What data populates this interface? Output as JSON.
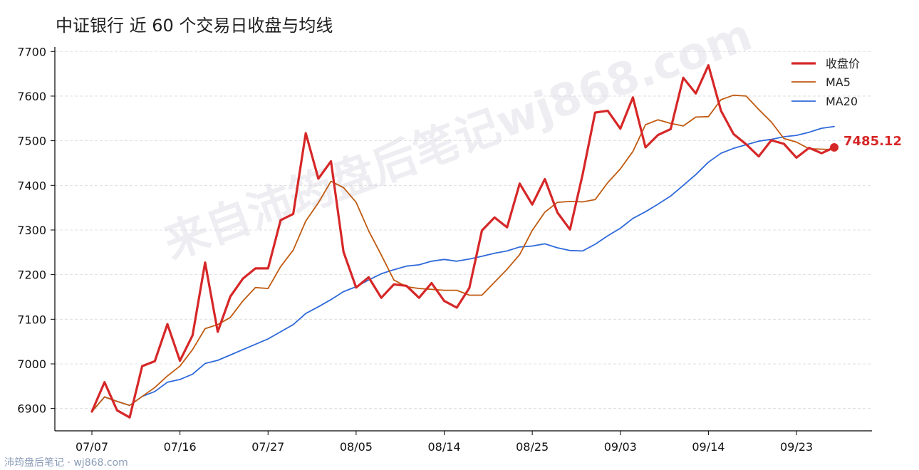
{
  "chart_data": {
    "type": "line",
    "title": "中证银行 近 60 个交易日收盘与均线",
    "xlabel": "",
    "ylabel": "",
    "ylim": [
      6850,
      7710
    ],
    "yticks": [
      6900,
      7000,
      7100,
      7200,
      7300,
      7400,
      7500,
      7600,
      7700
    ],
    "xtick_labels": [
      "07/07",
      "07/16",
      "07/27",
      "08/05",
      "08/14",
      "08/25",
      "09/03",
      "09/14",
      "09/23"
    ],
    "xtick_indices": [
      0,
      7,
      14,
      21,
      28,
      35,
      42,
      49,
      56
    ],
    "grid": "horizontal dashed",
    "legend_position": "top-right",
    "last_value_label": "7485.12",
    "series": [
      {
        "name": "收盘价",
        "color": "#d62728",
        "values": [
          6893,
          6959,
          6896,
          6880,
          6995,
          7006,
          7089,
          7007,
          7064,
          7227,
          7072,
          7151,
          7191,
          7214,
          7214,
          7322,
          7336,
          7517,
          7415,
          7454,
          7251,
          7171,
          7194,
          7148,
          7178,
          7175,
          7148,
          7181,
          7141,
          7126,
          7170,
          7299,
          7328,
          7306,
          7404,
          7357,
          7414,
          7339,
          7301,
          7424,
          7563,
          7567,
          7527,
          7597,
          7485,
          7513,
          7526,
          7641,
          7606,
          7669,
          7567,
          7515,
          7492,
          7465,
          7501,
          7493,
          7462,
          7484,
          7472,
          7485.12
        ]
      },
      {
        "name": "MA5",
        "color": "#c05a10",
        "values": [
          6893,
          6926,
          6916,
          6907,
          6927,
          6947,
          6973,
          6995,
          7032,
          7079,
          7088,
          7104,
          7141,
          7171,
          7169,
          7218,
          7255,
          7320,
          7361,
          7409,
          7395,
          7362,
          7298,
          7244,
          7188,
          7173,
          7169,
          7167,
          7165,
          7165,
          7154,
          7154,
          7183,
          7212,
          7245,
          7299,
          7340,
          7362,
          7364,
          7363,
          7368,
          7406,
          7437,
          7476,
          7536,
          7547,
          7539,
          7533,
          7553,
          7554,
          7592,
          7602,
          7600,
          7570,
          7542,
          7505,
          7497,
          7482,
          7481,
          7480
        ]
      },
      {
        "name": "MA20",
        "color": "#2f6ad9",
        "values": [
          6893,
          6926,
          6916,
          6907,
          6927,
          6938,
          6959,
          6965,
          6977,
          7001,
          7008,
          7020,
          7032,
          7044,
          7056,
          7072,
          7088,
          7113,
          7128,
          7144,
          7162,
          7173,
          7188,
          7202,
          7211,
          7219,
          7222,
          7230,
          7234,
          7230,
          7235,
          7241,
          7248,
          7253,
          7262,
          7264,
          7269,
          7260,
          7254,
          7253,
          7268,
          7287,
          7304,
          7326,
          7341,
          7358,
          7376,
          7400,
          7424,
          7452,
          7472,
          7483,
          7491,
          7499,
          7503,
          7509,
          7512,
          7519,
          7528,
          7532
        ]
      }
    ]
  },
  "watermark_text": "来自沛筠盘后笔记wj868.com",
  "footer_text": "沛筠盘后笔记 · wj868.com"
}
